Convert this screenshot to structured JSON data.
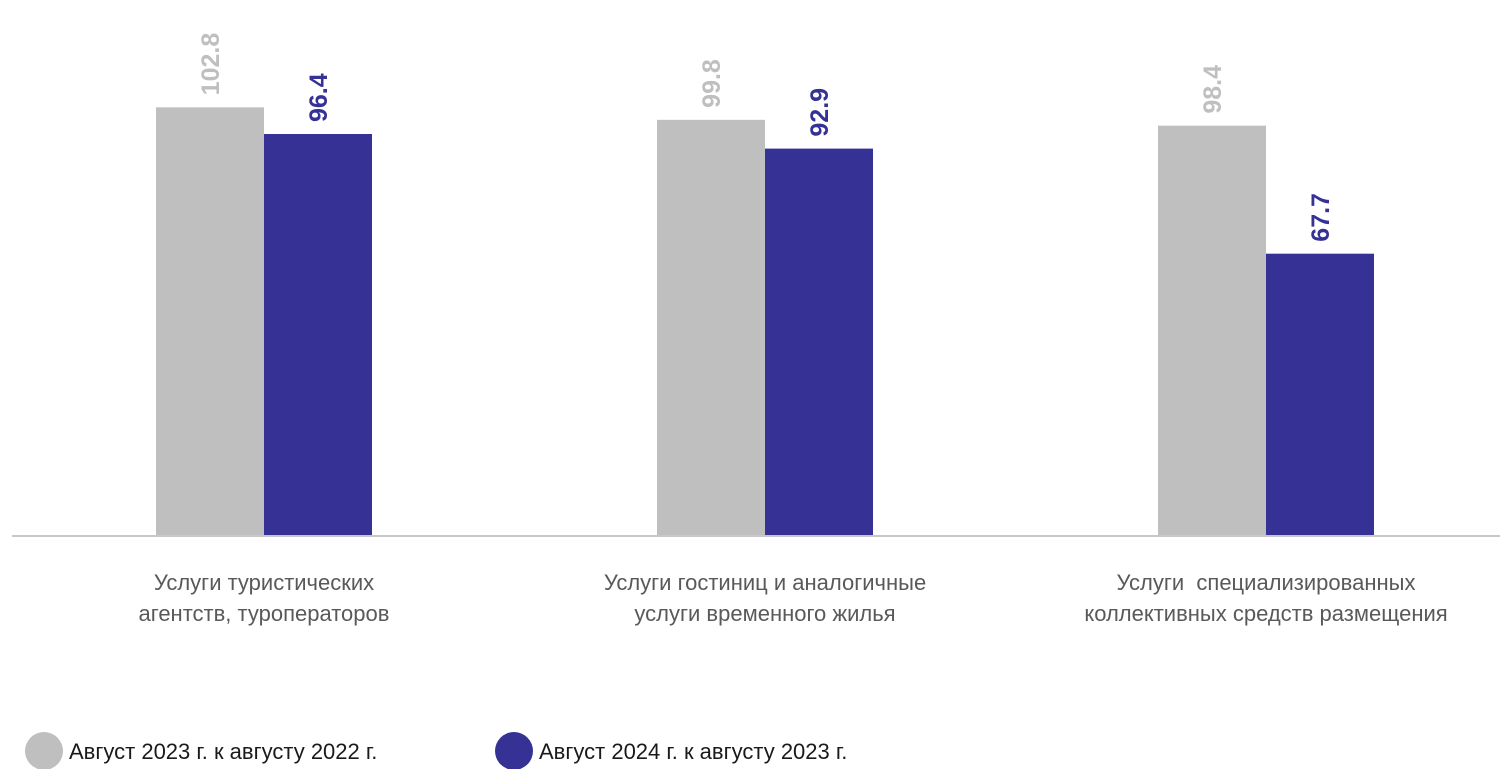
{
  "chart_data": {
    "type": "bar",
    "title": "",
    "xlabel": "",
    "ylabel": "",
    "ylim": [
      0,
      108
    ],
    "grid": false,
    "legend_position": "bottom-left",
    "categories": [
      [
        "Услуги туристических",
        "агентств, туроператоров"
      ],
      [
        "Услуги гостиниц и аналогичные",
        "услуги временного жилья"
      ],
      [
        "Услуги  специализированных",
        "коллективных средств размещения"
      ]
    ],
    "series": [
      {
        "name": "Август 2023 г. к августу 2022 г.",
        "color": "#bfbfbf",
        "values": [
          102.8,
          99.8,
          98.4
        ]
      },
      {
        "name": "Август 2024 г. к августу 2023 г.",
        "color": "#353195",
        "values": [
          96.4,
          92.9,
          67.7
        ]
      }
    ]
  }
}
